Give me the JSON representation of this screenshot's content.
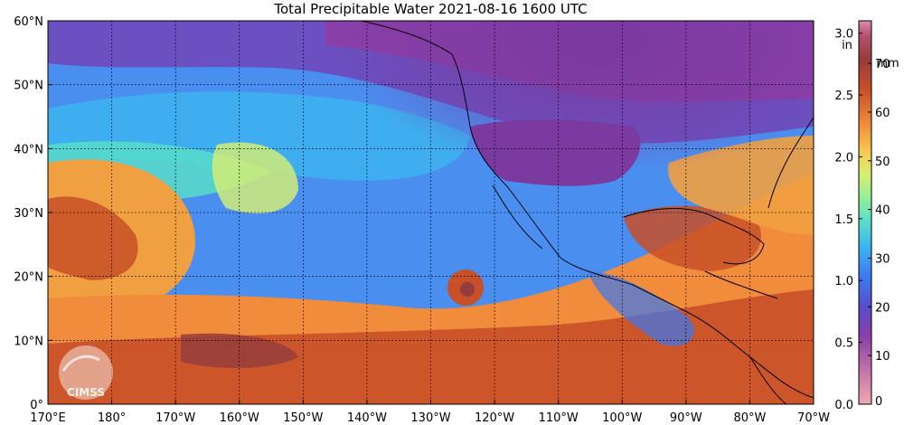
{
  "title": "Total Precipitable Water  2021-08-16 1600 UTC",
  "map": {
    "lon_labels": [
      "170°E",
      "180°",
      "170°W",
      "160°W",
      "150°W",
      "140°W",
      "130°W",
      "120°W",
      "110°W",
      "100°W",
      "90°W",
      "80°W",
      "70°W"
    ],
    "lat_labels": [
      "0°",
      "10°N",
      "20°N",
      "30°N",
      "40°N",
      "50°N",
      "60°N"
    ],
    "lat_range": [
      0,
      60
    ],
    "lon_range_deg_east": [
      170,
      290
    ],
    "gridlines": true,
    "gridline_style": "dashed",
    "logo_text": "CIMSS"
  },
  "colorbar": {
    "unit_in": "in",
    "unit_mm": "mm",
    "in_ticks": [
      "3.0",
      "2.5",
      "2.0",
      "1.5",
      "1.0",
      "0.5",
      "0.0"
    ],
    "mm_ticks": [
      "70",
      "60",
      "50",
      "40",
      "30",
      "20",
      "10",
      "0"
    ],
    "range_in": [
      0,
      3.1
    ],
    "colors": [
      "#f0a8b0",
      "#c878a8",
      "#8a3ea8",
      "#5a4cc8",
      "#3c78f0",
      "#3cb4f0",
      "#5ae0c8",
      "#96f096",
      "#d8f070",
      "#f8c850",
      "#f08c3c",
      "#c85028",
      "#963c3c",
      "#b4506e",
      "#dc8cb4"
    ]
  },
  "colors": {
    "land_outline": "#000000",
    "grid": "#000000"
  }
}
